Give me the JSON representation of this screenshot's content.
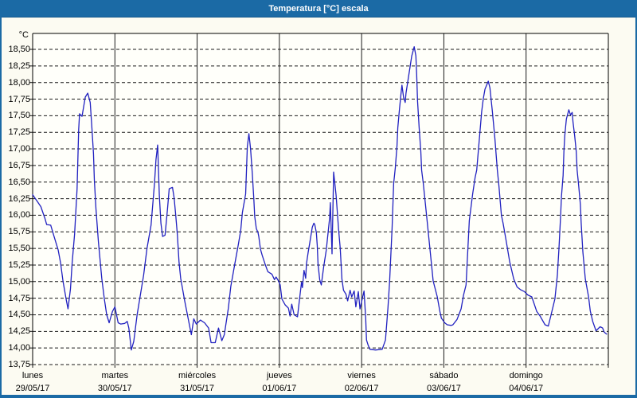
{
  "window": {
    "title": "Temperatura [°C] escala"
  },
  "colors": {
    "titlebar": "#1b6aa5",
    "window_background": "#fcfbf2",
    "plot_background": "#fffffa",
    "grid": "#1a1a1a",
    "line": "#2121c0",
    "title_text": "#ffffff",
    "axis_text": "#000000"
  },
  "chart_data": {
    "type": "line",
    "title": "Temperatura [°C] escala",
    "ylabel_unit": "°C",
    "legend": "none",
    "grid": "on",
    "ylim": [
      13.75,
      18.74
    ],
    "xlim_days": [
      0,
      7
    ],
    "yticks": [
      {
        "label": "18,50",
        "value": 18.5
      },
      {
        "label": "18,25",
        "value": 18.25
      },
      {
        "label": "18,00",
        "value": 18.0
      },
      {
        "label": "17,75",
        "value": 17.75
      },
      {
        "label": "17,50",
        "value": 17.5
      },
      {
        "label": "17,25",
        "value": 17.25
      },
      {
        "label": "17,00",
        "value": 17.0
      },
      {
        "label": "16,75",
        "value": 16.75
      },
      {
        "label": "16,50",
        "value": 16.5
      },
      {
        "label": "16,25",
        "value": 16.25
      },
      {
        "label": "16,00",
        "value": 16.0
      },
      {
        "label": "15,75",
        "value": 15.75
      },
      {
        "label": "15,50",
        "value": 15.5
      },
      {
        "label": "15,25",
        "value": 15.25
      },
      {
        "label": "15,00",
        "value": 15.0
      },
      {
        "label": "14,75",
        "value": 14.75
      },
      {
        "label": "14,50",
        "value": 14.5
      },
      {
        "label": "14,25",
        "value": 14.25
      },
      {
        "label": "14,00",
        "value": 14.0
      },
      {
        "label": "13,75",
        "value": 13.75
      }
    ],
    "days": [
      {
        "name": "lunes",
        "date": "29/05/17",
        "day_index": 0
      },
      {
        "name": "martes",
        "date": "30/05/17",
        "day_index": 1
      },
      {
        "name": "miércoles",
        "date": "31/05/17",
        "day_index": 2
      },
      {
        "name": "jueves",
        "date": "01/06/17",
        "day_index": 3
      },
      {
        "name": "viernes",
        "date": "02/06/17",
        "day_index": 4
      },
      {
        "name": "sábado",
        "date": "03/06/17",
        "day_index": 5
      },
      {
        "name": "domingo",
        "date": "04/06/17",
        "day_index": 6
      }
    ],
    "series": [
      {
        "name": "Temperatura",
        "units": "°C",
        "points": [
          [
            0.0,
            16.31
          ],
          [
            0.05,
            16.22
          ],
          [
            0.1,
            16.13
          ],
          [
            0.15,
            15.95
          ],
          [
            0.17,
            15.86
          ],
          [
            0.22,
            15.85
          ],
          [
            0.26,
            15.68
          ],
          [
            0.31,
            15.48
          ],
          [
            0.34,
            15.28
          ],
          [
            0.37,
            15.0
          ],
          [
            0.41,
            14.72
          ],
          [
            0.43,
            14.59
          ],
          [
            0.46,
            14.89
          ],
          [
            0.48,
            15.28
          ],
          [
            0.51,
            15.72
          ],
          [
            0.54,
            16.4
          ],
          [
            0.56,
            17.29
          ],
          [
            0.57,
            17.53
          ],
          [
            0.6,
            17.49
          ],
          [
            0.64,
            17.78
          ],
          [
            0.67,
            17.84
          ],
          [
            0.7,
            17.7
          ],
          [
            0.72,
            17.32
          ],
          [
            0.74,
            16.93
          ],
          [
            0.75,
            16.53
          ],
          [
            0.77,
            16.1
          ],
          [
            0.8,
            15.6
          ],
          [
            0.84,
            15.05
          ],
          [
            0.87,
            14.75
          ],
          [
            0.9,
            14.5
          ],
          [
            0.93,
            14.38
          ],
          [
            0.97,
            14.55
          ],
          [
            1.0,
            14.62
          ],
          [
            1.04,
            14.38
          ],
          [
            1.07,
            14.36
          ],
          [
            1.12,
            14.37
          ],
          [
            1.15,
            14.4
          ],
          [
            1.17,
            14.3
          ],
          [
            1.2,
            13.97
          ],
          [
            1.23,
            14.1
          ],
          [
            1.27,
            14.5
          ],
          [
            1.31,
            14.8
          ],
          [
            1.35,
            15.1
          ],
          [
            1.39,
            15.5
          ],
          [
            1.44,
            15.85
          ],
          [
            1.48,
            16.46
          ],
          [
            1.5,
            16.84
          ],
          [
            1.52,
            17.06
          ],
          [
            1.54,
            16.3
          ],
          [
            1.56,
            15.88
          ],
          [
            1.58,
            15.68
          ],
          [
            1.61,
            15.7
          ],
          [
            1.64,
            16.1
          ],
          [
            1.66,
            16.4
          ],
          [
            1.7,
            16.42
          ],
          [
            1.72,
            16.26
          ],
          [
            1.74,
            16.0
          ],
          [
            1.76,
            15.7
          ],
          [
            1.78,
            15.3
          ],
          [
            1.8,
            15.05
          ],
          [
            1.85,
            14.7
          ],
          [
            1.89,
            14.45
          ],
          [
            1.93,
            14.2
          ],
          [
            1.96,
            14.44
          ],
          [
            1.99,
            14.36
          ],
          [
            2.04,
            14.42
          ],
          [
            2.09,
            14.38
          ],
          [
            2.14,
            14.3
          ],
          [
            2.17,
            14.08
          ],
          [
            2.22,
            14.08
          ],
          [
            2.26,
            14.3
          ],
          [
            2.3,
            14.11
          ],
          [
            2.33,
            14.2
          ],
          [
            2.38,
            14.6
          ],
          [
            2.41,
            14.93
          ],
          [
            2.46,
            15.28
          ],
          [
            2.5,
            15.55
          ],
          [
            2.53,
            15.77
          ],
          [
            2.55,
            16.04
          ],
          [
            2.59,
            16.32
          ],
          [
            2.61,
            17.03
          ],
          [
            2.63,
            17.23
          ],
          [
            2.65,
            17.0
          ],
          [
            2.67,
            16.64
          ],
          [
            2.69,
            16.24
          ],
          [
            2.7,
            15.98
          ],
          [
            2.72,
            15.8
          ],
          [
            2.74,
            15.74
          ],
          [
            2.75,
            15.68
          ],
          [
            2.77,
            15.49
          ],
          [
            2.79,
            15.4
          ],
          [
            2.83,
            15.25
          ],
          [
            2.86,
            15.15
          ],
          [
            2.91,
            15.11
          ],
          [
            2.94,
            15.03
          ],
          [
            2.96,
            15.07
          ],
          [
            2.99,
            15.01
          ],
          [
            3.01,
            14.95
          ],
          [
            3.03,
            14.74
          ],
          [
            3.07,
            14.65
          ],
          [
            3.11,
            14.6
          ],
          [
            3.13,
            14.48
          ],
          [
            3.15,
            14.66
          ],
          [
            3.18,
            14.5
          ],
          [
            3.22,
            14.47
          ],
          [
            3.25,
            14.79
          ],
          [
            3.27,
            14.99
          ],
          [
            3.28,
            14.91
          ],
          [
            3.3,
            15.17
          ],
          [
            3.32,
            15.05
          ],
          [
            3.33,
            15.27
          ],
          [
            3.35,
            15.44
          ],
          [
            3.37,
            15.59
          ],
          [
            3.4,
            15.82
          ],
          [
            3.42,
            15.88
          ],
          [
            3.43,
            15.86
          ],
          [
            3.45,
            15.74
          ],
          [
            3.46,
            15.55
          ],
          [
            3.47,
            15.27
          ],
          [
            3.49,
            15.03
          ],
          [
            3.51,
            14.95
          ],
          [
            3.54,
            15.23
          ],
          [
            3.57,
            15.47
          ],
          [
            3.59,
            15.71
          ],
          [
            3.61,
            15.95
          ],
          [
            3.62,
            16.19
          ],
          [
            3.64,
            15.42
          ],
          [
            3.66,
            16.65
          ],
          [
            3.69,
            16.3
          ],
          [
            3.72,
            15.79
          ],
          [
            3.74,
            15.5
          ],
          [
            3.75,
            15.28
          ],
          [
            3.76,
            15.04
          ],
          [
            3.78,
            14.87
          ],
          [
            3.81,
            14.81
          ],
          [
            3.83,
            14.71
          ],
          [
            3.86,
            14.87
          ],
          [
            3.88,
            14.77
          ],
          [
            3.91,
            14.86
          ],
          [
            3.93,
            14.62
          ],
          [
            3.96,
            14.85
          ],
          [
            3.98,
            14.59
          ],
          [
            4.03,
            14.86
          ],
          [
            4.05,
            14.44
          ],
          [
            4.06,
            14.12
          ],
          [
            4.08,
            14.04
          ],
          [
            4.1,
            13.98
          ],
          [
            4.17,
            13.97
          ],
          [
            4.25,
            13.98
          ],
          [
            4.29,
            14.12
          ],
          [
            4.32,
            14.6
          ],
          [
            4.34,
            15.0
          ],
          [
            4.37,
            15.8
          ],
          [
            4.39,
            16.48
          ],
          [
            4.41,
            16.72
          ],
          [
            4.43,
            17.05
          ],
          [
            4.44,
            17.32
          ],
          [
            4.46,
            17.6
          ],
          [
            4.48,
            17.84
          ],
          [
            4.49,
            17.96
          ],
          [
            4.51,
            17.78
          ],
          [
            4.53,
            17.7
          ],
          [
            4.54,
            17.84
          ],
          [
            4.58,
            18.16
          ],
          [
            4.61,
            18.4
          ],
          [
            4.64,
            18.54
          ],
          [
            4.66,
            18.4
          ],
          [
            4.67,
            18.12
          ],
          [
            4.68,
            17.72
          ],
          [
            4.7,
            17.32
          ],
          [
            4.72,
            16.96
          ],
          [
            4.73,
            16.68
          ],
          [
            4.75,
            16.48
          ],
          [
            4.79,
            16.0
          ],
          [
            4.83,
            15.5
          ],
          [
            4.87,
            15.01
          ],
          [
            4.92,
            14.77
          ],
          [
            4.95,
            14.56
          ],
          [
            4.97,
            14.45
          ],
          [
            5.01,
            14.38
          ],
          [
            5.04,
            14.35
          ],
          [
            5.09,
            14.34
          ],
          [
            5.11,
            14.35
          ],
          [
            5.16,
            14.43
          ],
          [
            5.21,
            14.59
          ],
          [
            5.24,
            14.8
          ],
          [
            5.27,
            14.95
          ],
          [
            5.31,
            15.92
          ],
          [
            5.33,
            16.12
          ],
          [
            5.35,
            16.32
          ],
          [
            5.38,
            16.57
          ],
          [
            5.4,
            16.68
          ],
          [
            5.43,
            17.12
          ],
          [
            5.46,
            17.56
          ],
          [
            5.48,
            17.76
          ],
          [
            5.5,
            17.9
          ],
          [
            5.54,
            18.02
          ],
          [
            5.56,
            17.92
          ],
          [
            5.59,
            17.56
          ],
          [
            5.62,
            17.16
          ],
          [
            5.65,
            16.68
          ],
          [
            5.67,
            16.44
          ],
          [
            5.7,
            16.0
          ],
          [
            5.72,
            15.88
          ],
          [
            5.76,
            15.6
          ],
          [
            5.8,
            15.3
          ],
          [
            5.85,
            15.04
          ],
          [
            5.89,
            14.92
          ],
          [
            5.93,
            14.88
          ],
          [
            5.98,
            14.85
          ],
          [
            6.02,
            14.8
          ],
          [
            6.07,
            14.77
          ],
          [
            6.13,
            14.55
          ],
          [
            6.17,
            14.48
          ],
          [
            6.23,
            14.35
          ],
          [
            6.27,
            14.33
          ],
          [
            6.3,
            14.48
          ],
          [
            6.35,
            14.74
          ],
          [
            6.38,
            15.1
          ],
          [
            6.4,
            15.5
          ],
          [
            6.42,
            16.0
          ],
          [
            6.43,
            16.28
          ],
          [
            6.45,
            16.6
          ],
          [
            6.46,
            16.96
          ],
          [
            6.47,
            17.2
          ],
          [
            6.49,
            17.45
          ],
          [
            6.52,
            17.59
          ],
          [
            6.54,
            17.51
          ],
          [
            6.56,
            17.55
          ],
          [
            6.57,
            17.41
          ],
          [
            6.59,
            17.2
          ],
          [
            6.61,
            16.96
          ],
          [
            6.62,
            16.68
          ],
          [
            6.64,
            16.44
          ],
          [
            6.66,
            16.16
          ],
          [
            6.67,
            15.88
          ],
          [
            6.69,
            15.45
          ],
          [
            6.72,
            15.04
          ],
          [
            6.76,
            14.77
          ],
          [
            6.78,
            14.56
          ],
          [
            6.81,
            14.4
          ],
          [
            6.85,
            14.26
          ],
          [
            6.9,
            14.32
          ],
          [
            6.93,
            14.3
          ],
          [
            6.95,
            14.24
          ],
          [
            6.98,
            14.21
          ]
        ]
      }
    ]
  }
}
